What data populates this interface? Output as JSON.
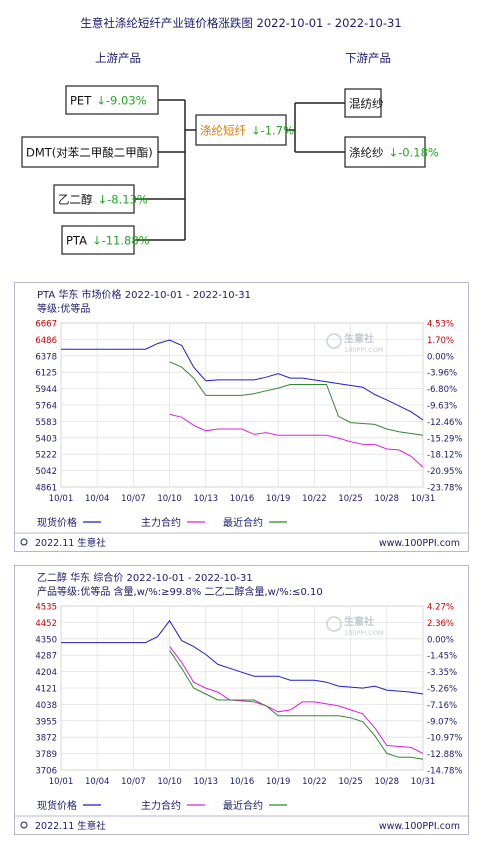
{
  "diagram": {
    "title": "生意社涤纶短纤产业链价格涨跌图  2022-10-01 - 2022-10-31",
    "upstream_header": "上游产品",
    "downstream_header": "下游产品",
    "upstream": [
      {
        "name": "PET",
        "change": "-9.03%"
      },
      {
        "name": "DMT(对苯二甲酸二甲酯)",
        "change": ""
      },
      {
        "name": "乙二醇",
        "change": "-8.13%"
      },
      {
        "name": "PTA",
        "change": "-11.88%"
      }
    ],
    "center": {
      "name": "涤纶短纤",
      "change": "-1.7%"
    },
    "downstream": [
      {
        "name": "混纺纱",
        "change": ""
      },
      {
        "name": "涤纶纱",
        "change": "-0.18%"
      }
    ],
    "arrow_symbol": "↓",
    "down_color": "#22aa22",
    "center_color": "#dd7a00"
  },
  "chart_data": [
    {
      "type": "line",
      "title": "PTA  华东  市场价格  2022-10-01 - 2022-10-31",
      "subtitle": "等级:优等品",
      "x_ticks": [
        "10/01",
        "10/04",
        "10/07",
        "10/10",
        "10/13",
        "10/16",
        "10/19",
        "10/22",
        "10/25",
        "10/28",
        "10/31"
      ],
      "y_ticks": [
        "6667",
        "6486",
        "6378",
        "6125",
        "5944",
        "5764",
        "5583",
        "5403",
        "5222",
        "5042",
        "4861"
      ],
      "y_ticks_right": [
        "4.53%",
        "1.70%",
        "0.00%",
        "-3.96%",
        "-6.80%",
        "-9.63%",
        "-12.46%",
        "-15.29%",
        "-18.12%",
        "-20.95%",
        "-23.78%"
      ],
      "ylim": [
        4861,
        6667
      ],
      "series": [
        {
          "name": "现货价格",
          "color": "#1f1fcc",
          "points": [
            [
              1,
              6378
            ],
            [
              8,
              6378
            ],
            [
              9,
              6440
            ],
            [
              10,
              6480
            ],
            [
              11,
              6420
            ],
            [
              12,
              6180
            ],
            [
              13,
              6030
            ],
            [
              14,
              6040
            ],
            [
              17,
              6040
            ],
            [
              18,
              6070
            ],
            [
              19,
              6110
            ],
            [
              20,
              6060
            ],
            [
              21,
              6060
            ],
            [
              23,
              6020
            ],
            [
              24,
              6000
            ],
            [
              26,
              5960
            ],
            [
              27,
              5880
            ],
            [
              28,
              5820
            ],
            [
              30,
              5690
            ],
            [
              31,
              5600
            ]
          ]
        },
        {
          "name": "主力合约",
          "color": "#e020e0",
          "points": [
            [
              10,
              5660
            ],
            [
              11,
              5630
            ],
            [
              12,
              5540
            ],
            [
              13,
              5480
            ],
            [
              14,
              5500
            ],
            [
              16,
              5500
            ],
            [
              17,
              5440
            ],
            [
              18,
              5460
            ],
            [
              19,
              5430
            ],
            [
              23,
              5430
            ],
            [
              24,
              5400
            ],
            [
              25,
              5360
            ],
            [
              26,
              5330
            ],
            [
              27,
              5330
            ],
            [
              28,
              5280
            ],
            [
              29,
              5270
            ],
            [
              30,
              5200
            ],
            [
              31,
              5080
            ]
          ]
        },
        {
          "name": "最近合约",
          "color": "#338833",
          "points": [
            [
              10,
              6240
            ],
            [
              11,
              6180
            ],
            [
              12,
              6060
            ],
            [
              13,
              5870
            ],
            [
              16,
              5870
            ],
            [
              17,
              5890
            ],
            [
              18,
              5920
            ],
            [
              19,
              5950
            ],
            [
              20,
              5990
            ],
            [
              23,
              5990
            ],
            [
              24,
              5640
            ],
            [
              25,
              5570
            ],
            [
              27,
              5550
            ],
            [
              28,
              5500
            ],
            [
              29,
              5470
            ],
            [
              31,
              5430
            ]
          ]
        }
      ],
      "footer_date": "2022.11 生意社",
      "footer_url": "www.100PPI.com"
    },
    {
      "type": "line",
      "title": "乙二醇  华东  综合价  2022-10-01 - 2022-10-31",
      "subtitle": "产品等级:优等品 含量,w/%:≥99.8% 二乙二醇含量,w/%:≤0.10",
      "x_ticks": [
        "10/01",
        "10/04",
        "10/07",
        "10/10",
        "10/13",
        "10/16",
        "10/19",
        "10/22",
        "10/25",
        "10/28",
        "10/31"
      ],
      "y_ticks": [
        "4535",
        "4452",
        "4350",
        "4287",
        "4204",
        "4121",
        "4038",
        "3955",
        "3872",
        "3789",
        "3706"
      ],
      "y_ticks_right": [
        "4.27%",
        "2.36%",
        "0.00%",
        "-1.45%",
        "-3.35%",
        "-5.26%",
        "-7.16%",
        "-9.07%",
        "-10.97%",
        "-12.88%",
        "-14.78%"
      ],
      "ylim": [
        3706,
        4535
      ],
      "series": [
        {
          "name": "现货价格",
          "color": "#1f1fcc",
          "points": [
            [
              1,
              4350
            ],
            [
              8,
              4350
            ],
            [
              9,
              4380
            ],
            [
              10,
              4460
            ],
            [
              11,
              4360
            ],
            [
              12,
              4330
            ],
            [
              13,
              4290
            ],
            [
              14,
              4240
            ],
            [
              15,
              4220
            ],
            [
              16,
              4200
            ],
            [
              17,
              4180
            ],
            [
              19,
              4180
            ],
            [
              20,
              4160
            ],
            [
              22,
              4160
            ],
            [
              23,
              4150
            ],
            [
              24,
              4130
            ],
            [
              26,
              4120
            ],
            [
              27,
              4130
            ],
            [
              28,
              4110
            ],
            [
              30,
              4100
            ],
            [
              31,
              4090
            ]
          ]
        },
        {
          "name": "主力合约",
          "color": "#e020e0",
          "points": [
            [
              10,
              4330
            ],
            [
              11,
              4250
            ],
            [
              12,
              4150
            ],
            [
              13,
              4120
            ],
            [
              14,
              4100
            ],
            [
              15,
              4060
            ],
            [
              17,
              4050
            ],
            [
              18,
              4030
            ],
            [
              19,
              4000
            ],
            [
              20,
              4010
            ],
            [
              21,
              4050
            ],
            [
              22,
              4050
            ],
            [
              23,
              4040
            ],
            [
              24,
              4030
            ],
            [
              25,
              4010
            ],
            [
              26,
              3990
            ],
            [
              27,
              3920
            ],
            [
              28,
              3830
            ],
            [
              30,
              3820
            ],
            [
              31,
              3790
            ]
          ]
        },
        {
          "name": "最近合约",
          "color": "#338833",
          "points": [
            [
              10,
              4310
            ],
            [
              11,
              4220
            ],
            [
              12,
              4120
            ],
            [
              13,
              4090
            ],
            [
              14,
              4060
            ],
            [
              17,
              4060
            ],
            [
              18,
              4030
            ],
            [
              19,
              3980
            ],
            [
              24,
              3980
            ],
            [
              25,
              3970
            ],
            [
              26,
              3950
            ],
            [
              27,
              3880
            ],
            [
              28,
              3790
            ],
            [
              29,
              3770
            ],
            [
              30,
              3770
            ],
            [
              31,
              3760
            ]
          ]
        }
      ],
      "footer_date": "2022.11 生意社",
      "footer_url": "www.100PPI.com"
    }
  ],
  "watermark": {
    "name": "生意社",
    "url": "100PPI.COM"
  }
}
